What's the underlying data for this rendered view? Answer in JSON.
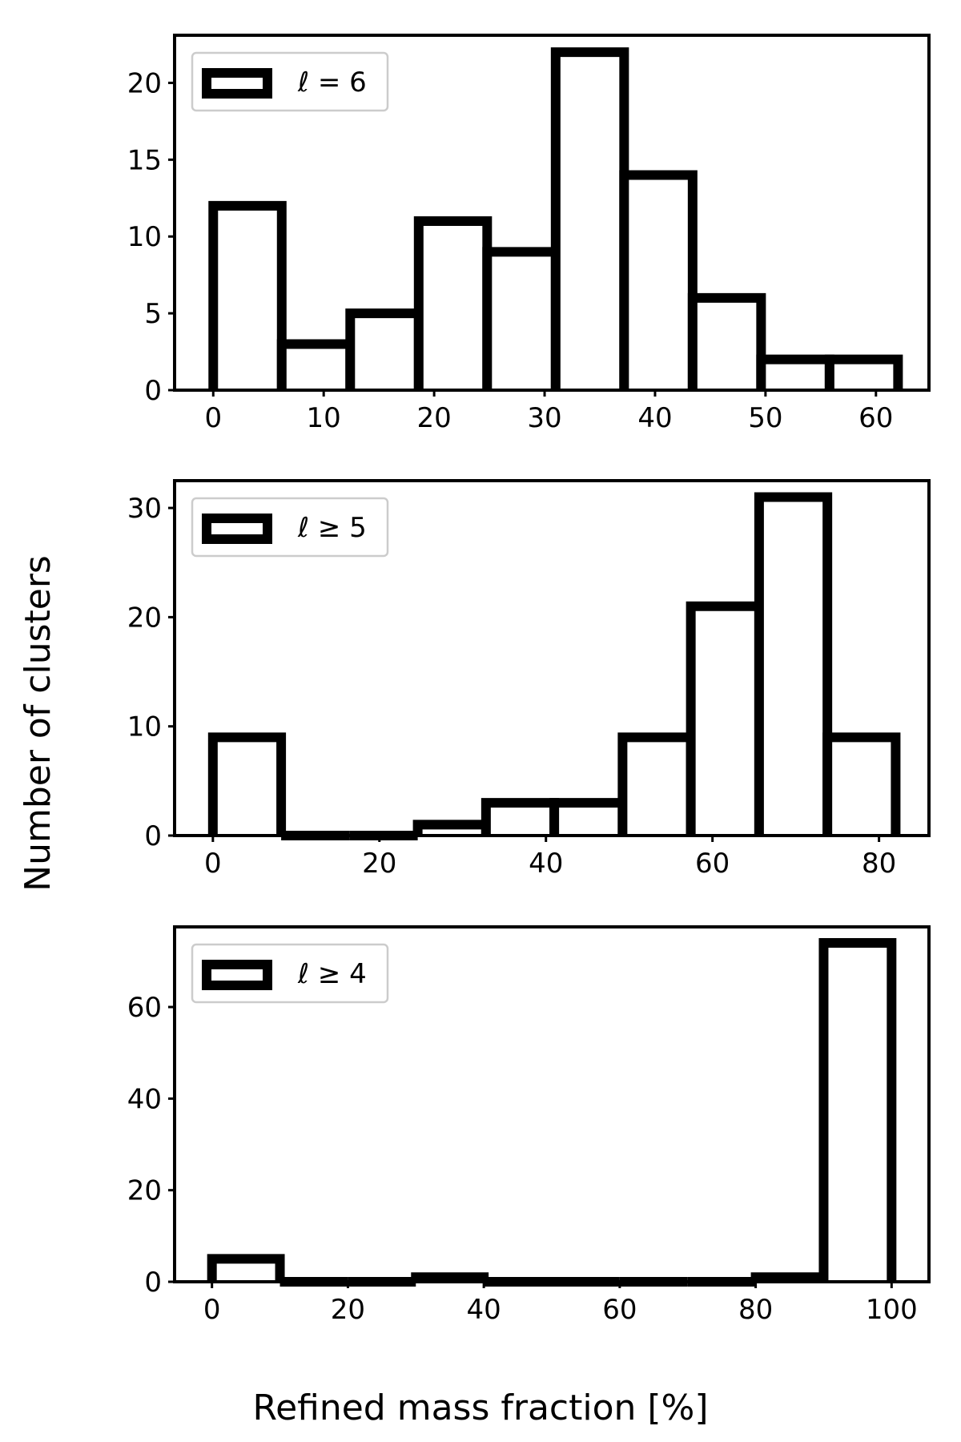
{
  "figure": {
    "ylabel": "Number of clusters",
    "xlabel": "Refined mass fraction [%]"
  },
  "chart_data": [
    {
      "type": "bar",
      "legend": "ℓ = 6",
      "legend_loc": "upper-left",
      "bin_edges": [
        0,
        6.2,
        12.4,
        18.6,
        24.8,
        31.0,
        37.2,
        43.4,
        49.6,
        55.8,
        62.0
      ],
      "values": [
        12,
        3,
        5,
        11,
        9,
        22,
        14,
        6,
        2,
        2
      ],
      "xlim": [
        -3.5,
        64.8
      ],
      "ylim": [
        0,
        23.1
      ],
      "xticks": [
        0,
        10,
        20,
        30,
        40,
        50,
        60
      ],
      "xtick_labels": [
        "0",
        "10",
        "20",
        "30",
        "40",
        "50",
        "60"
      ],
      "yticks": [
        0,
        5,
        10,
        15,
        20
      ],
      "ytick_labels": [
        "0",
        "5",
        "10",
        "15",
        "20"
      ]
    },
    {
      "type": "bar",
      "legend": "ℓ ≥ 5",
      "legend_loc": "upper-left",
      "bin_edges": [
        0,
        8.2,
        16.4,
        24.6,
        32.8,
        41.0,
        49.2,
        57.4,
        65.6,
        73.8,
        82.0
      ],
      "values": [
        9,
        0,
        0,
        1,
        3,
        3,
        9,
        21,
        31,
        9
      ],
      "xlim": [
        -4.6,
        86.0
      ],
      "ylim": [
        0,
        32.5
      ],
      "xticks": [
        0,
        20,
        40,
        60,
        80
      ],
      "xtick_labels": [
        "0",
        "20",
        "40",
        "60",
        "80"
      ],
      "yticks": [
        0,
        10,
        20,
        30
      ],
      "ytick_labels": [
        "0",
        "10",
        "20",
        "30"
      ]
    },
    {
      "type": "bar",
      "legend": "ℓ ≥ 4",
      "legend_loc": "upper-left",
      "bin_edges": [
        0,
        10,
        20,
        30,
        40,
        50,
        60,
        70,
        80,
        90,
        100
      ],
      "values": [
        5,
        0,
        0,
        1,
        0,
        0,
        0,
        0,
        1,
        74
      ],
      "xlim": [
        -5.5,
        105.5
      ],
      "ylim": [
        0,
        77.5
      ],
      "xticks": [
        0,
        20,
        40,
        60,
        80,
        100
      ],
      "xtick_labels": [
        "0",
        "20",
        "40",
        "60",
        "80",
        "100"
      ],
      "yticks": [
        0,
        20,
        40,
        60
      ],
      "ytick_labels": [
        "0",
        "20",
        "40",
        "60"
      ]
    }
  ]
}
